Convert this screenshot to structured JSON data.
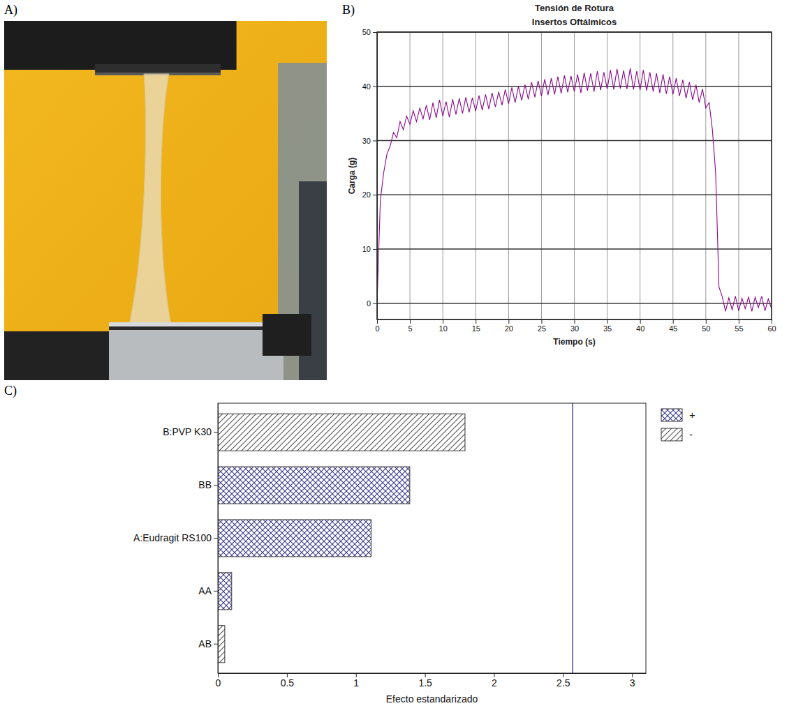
{
  "chart_data": [
    {
      "type": "image",
      "panel": "A)"
    },
    {
      "type": "line",
      "panel": "B)",
      "title": "Tensión de Rotura",
      "subtitle": "Insertos Oftálmicos",
      "x_label": "Tiempo (s)",
      "y_label": "Carga (g)",
      "color": "#8b0a8b",
      "grid": true,
      "xlim": [
        0,
        60
      ],
      "xticks": [
        0,
        5,
        10,
        15,
        20,
        25,
        30,
        35,
        40,
        45,
        50,
        55,
        60
      ],
      "ylim": [
        -3,
        50
      ],
      "yticks": [
        0,
        10,
        20,
        30,
        40,
        50
      ],
      "x": [
        0,
        0.5,
        1,
        1.5,
        2,
        2.5,
        3,
        3.5,
        4,
        4.5,
        5,
        5.5,
        6,
        6.5,
        7,
        7.5,
        8,
        8.5,
        9,
        9.5,
        10,
        10.5,
        11,
        11.5,
        12,
        12.5,
        13,
        13.5,
        14,
        14.5,
        15,
        15.5,
        16,
        16.5,
        17,
        17.5,
        18,
        18.5,
        19,
        19.5,
        20,
        20.5,
        21,
        21.5,
        22,
        22.5,
        23,
        23.5,
        24,
        24.5,
        25,
        25.5,
        26,
        26.5,
        27,
        27.5,
        28,
        28.5,
        29,
        29.5,
        30,
        30.5,
        31,
        31.5,
        32,
        32.5,
        33,
        33.5,
        34,
        34.5,
        35,
        35.5,
        36,
        36.5,
        37,
        37.5,
        38,
        38.5,
        39,
        39.5,
        40,
        40.5,
        41,
        41.5,
        42,
        42.5,
        43,
        43.5,
        44,
        44.5,
        45,
        45.5,
        46,
        46.5,
        47,
        47.5,
        48,
        48.5,
        49,
        49.5,
        50,
        50.5,
        51,
        51.5,
        52,
        52.5,
        53,
        53.5,
        54,
        54.5,
        55,
        55.5,
        56,
        56.5,
        57,
        57.5,
        58,
        58.5,
        59,
        59.5,
        60
      ],
      "values": [
        0,
        19,
        24,
        27.5,
        29,
        31.5,
        30.5,
        33.5,
        32,
        34.5,
        33,
        35.5,
        33.5,
        36,
        34,
        36.5,
        33.8,
        37,
        34.2,
        37.5,
        34.5,
        37.2,
        34.3,
        37.6,
        34.8,
        37.8,
        35,
        38,
        35.2,
        37.9,
        35.4,
        38.3,
        35.6,
        38.5,
        35.8,
        38.8,
        36.2,
        39,
        36.5,
        39.4,
        36.8,
        39.8,
        37,
        40,
        37.4,
        40.3,
        37.6,
        40.8,
        38,
        41,
        38.2,
        41.3,
        38.4,
        41.5,
        38.5,
        41.8,
        38.7,
        42,
        38.9,
        41.9,
        39,
        42.2,
        38.8,
        42.5,
        39.2,
        42.4,
        39,
        42.8,
        39.3,
        42.6,
        39.5,
        43,
        39.4,
        43.2,
        39.6,
        42.9,
        39.5,
        43.3,
        39.4,
        42.8,
        39.3,
        43,
        39.2,
        42.6,
        39,
        42.4,
        38.8,
        42.2,
        38.6,
        41.8,
        38.5,
        41.5,
        38.2,
        41.2,
        37.8,
        40.8,
        37.5,
        40.3,
        37,
        39.5,
        36,
        37,
        32,
        24,
        3,
        1.2,
        -1.5,
        1,
        -1.2,
        1.3,
        -1.4,
        0.9,
        -1,
        1.2,
        -1.5,
        1.1,
        -0.8,
        1.3,
        -1.4,
        0.8,
        -1
      ]
    },
    {
      "type": "bar",
      "panel": "C)",
      "orientation": "horizontal",
      "grid": false,
      "legend": "top-right",
      "x_label": "Efecto estandarizado",
      "categories": [
        "B:PVP K30",
        "BB",
        "A:Eudragit RS100",
        "AA",
        "AB"
      ],
      "series": [
        {
          "name": "+",
          "color": "#3c3c8c",
          "values": [
            null,
            1.39,
            1.11,
            0.1,
            null
          ]
        },
        {
          "name": "-",
          "color": "#555555",
          "values": [
            1.79,
            null,
            null,
            null,
            0.05
          ]
        }
      ],
      "critical_value": 2.57,
      "xlim": [
        0,
        3.1
      ],
      "xticks": [
        0,
        0.5,
        1,
        1.5,
        2,
        2.5,
        3
      ]
    }
  ]
}
